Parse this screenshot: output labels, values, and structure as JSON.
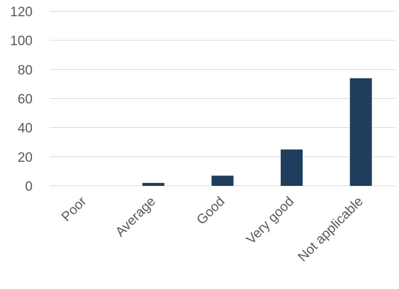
{
  "chart_data": {
    "type": "bar",
    "title": "",
    "xlabel": "",
    "ylabel": "",
    "categories": [
      "Poor",
      "Average",
      "Good",
      "Very good",
      "Not applicable"
    ],
    "values": [
      0,
      2,
      7,
      25,
      74
    ],
    "ylim": [
      0,
      120
    ],
    "yticks": [
      0,
      20,
      40,
      60,
      80,
      100,
      120
    ],
    "grid": true,
    "legend": "none",
    "bar_color": "#1f3d5c"
  }
}
